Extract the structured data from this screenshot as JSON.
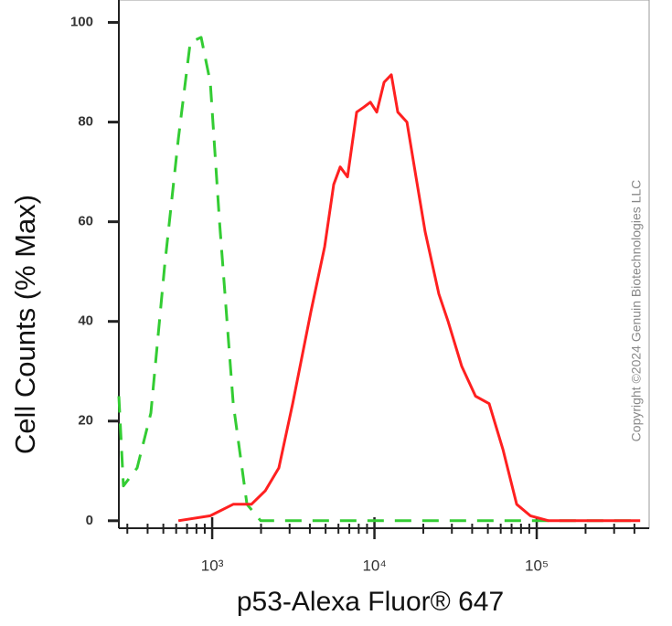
{
  "chart_data": {
    "type": "line",
    "log_x": true,
    "y_label": "Cell Counts (% Max)",
    "x_label": "p53-Alexa Fluor® 647",
    "watermark": "Copyright ©2024 Genuin Biotechnologies LLC",
    "xlim": [
      266,
      493000
    ],
    "ylim": [
      -1.5,
      104.5
    ],
    "xticks": [
      {
        "value": 1000,
        "label": "10³"
      },
      {
        "value": 10000,
        "label": "10⁴"
      },
      {
        "value": 100000,
        "label": "10⁵"
      }
    ],
    "xminorticks": [
      300,
      400,
      500,
      600,
      700,
      800,
      900,
      2000,
      3000,
      4000,
      5000,
      6000,
      7000,
      8000,
      9000,
      20000,
      30000,
      40000,
      50000,
      60000,
      70000,
      80000,
      90000,
      200000,
      300000,
      400000
    ],
    "yticks": [
      0,
      20,
      40,
      60,
      80,
      100
    ],
    "series": [
      {
        "color": "#33cc33",
        "dash": true,
        "x": [
          266,
          284,
          345,
          419,
          509,
          619,
          733,
          855,
          974,
          1110,
          1348,
          1637,
          1990,
          434000
        ],
        "values": [
          25,
          7,
          10.6,
          21.6,
          51,
          76.7,
          96,
          97,
          88,
          60,
          23.5,
          3.3,
          0,
          0
        ]
      },
      {
        "color": "#ff2020",
        "dash": false,
        "x": [
          619,
          974,
          1348,
          1746,
          2122,
          2577,
          3133,
          4060,
          4932,
          5610,
          6150,
          6820,
          7770,
          8610,
          9440,
          10330,
          11460,
          12710,
          13930,
          15850,
          18030,
          20540,
          24950,
          28430,
          34510,
          41980,
          50930,
          61900,
          75200,
          91400,
          118300,
          434000
        ],
        "values": [
          0,
          1,
          3.3,
          3.3,
          6,
          10.6,
          23.5,
          42,
          55,
          67.5,
          71,
          69,
          82,
          83,
          84,
          82,
          88,
          89.5,
          82,
          80,
          69,
          58,
          45.5,
          40,
          31,
          25,
          23.5,
          14.3,
          3.3,
          1,
          0,
          0
        ]
      }
    ]
  }
}
